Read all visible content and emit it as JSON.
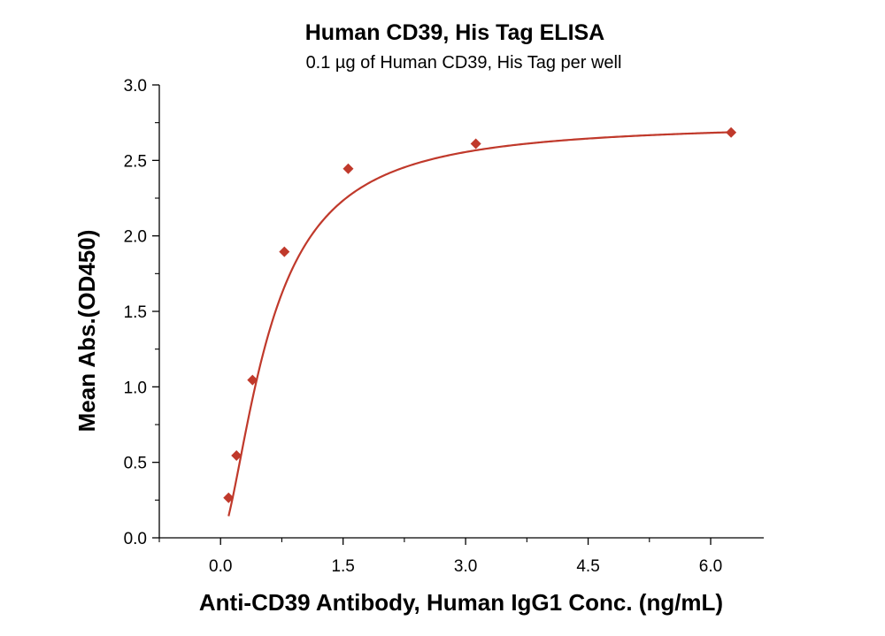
{
  "chart_data": {
    "type": "scatter",
    "title": "Human CD39, His Tag ELISA",
    "subtitle": "0.1 µg of Human CD39, His Tag per well",
    "xlabel": "Anti-CD39 Antibody, Human IgG1 Conc. (ng/mL)",
    "ylabel": "Mean Abs.(OD450)",
    "xlim": [
      -0.75,
      6.65
    ],
    "ylim": [
      0.0,
      3.0
    ],
    "xticks": [
      "0.0",
      "1.5",
      "3.0",
      "4.5",
      "6.0"
    ],
    "yticks": [
      "0.0",
      "0.5",
      "1.0",
      "1.5",
      "2.0",
      "2.5",
      "3.0"
    ],
    "grid": false,
    "marker": "diamond",
    "color": "#c0392b",
    "x": [
      0.098,
      0.195,
      0.391,
      0.781,
      1.563,
      3.125,
      6.25
    ],
    "y": [
      0.265,
      0.545,
      1.045,
      1.895,
      2.445,
      2.61,
      2.685
    ],
    "fit": {
      "type": "4PL",
      "bottom": 0.0,
      "top": 2.75,
      "ec50": 0.6,
      "hill": 1.6
    }
  }
}
